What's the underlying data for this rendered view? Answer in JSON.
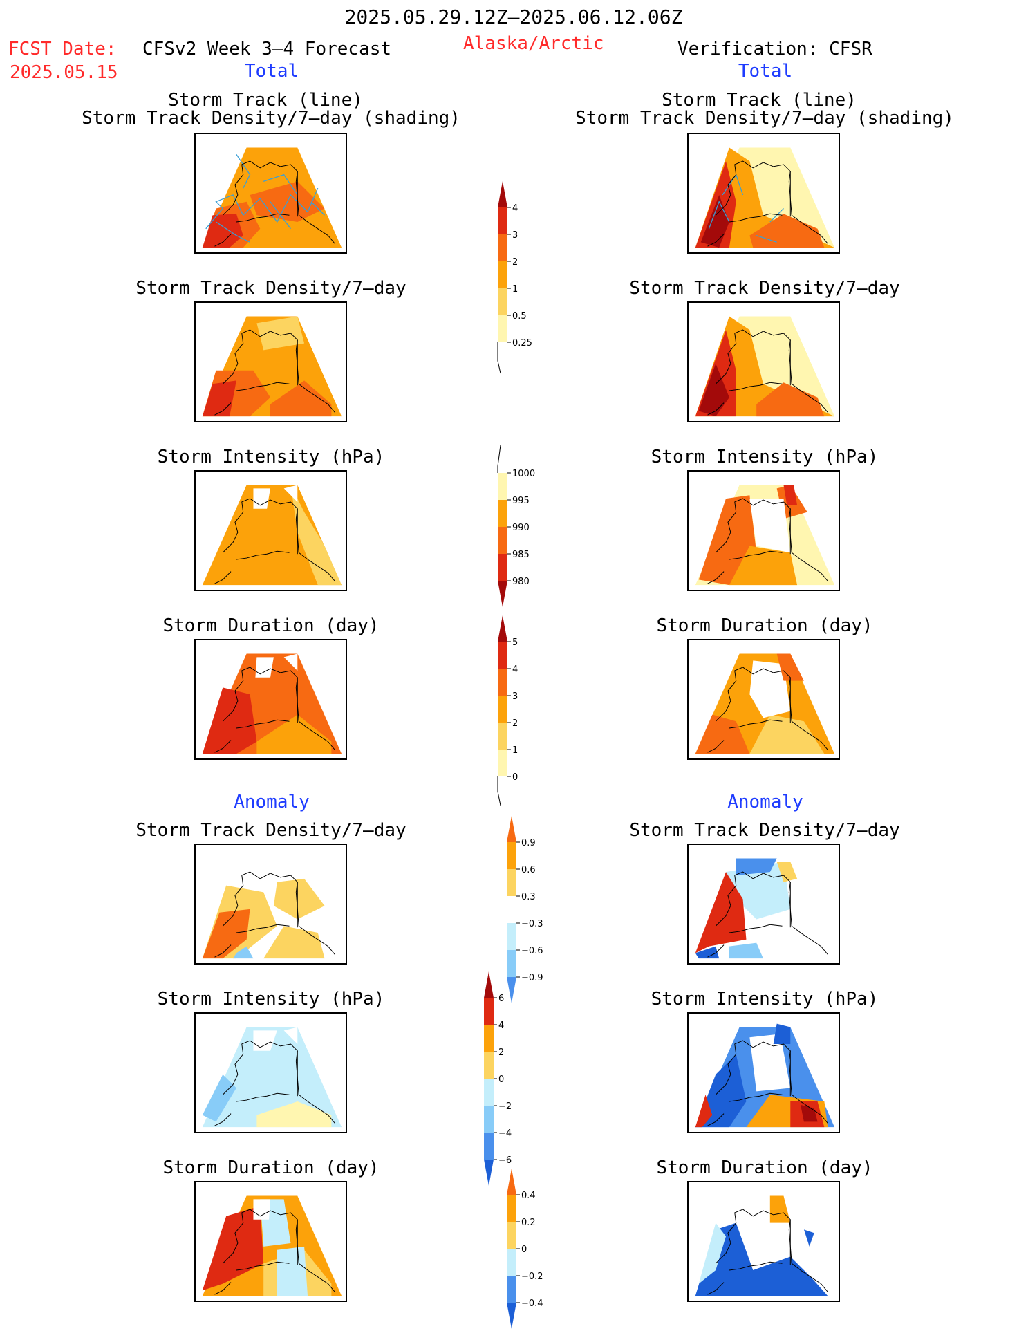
{
  "header": {
    "period": "2025.05.29.12Z–2025.06.12.06Z",
    "fcst_label": "FCST Date:",
    "fcst_date": "2025.05.15",
    "model": "CFSv2 Week 3–4 Forecast",
    "region": "Alaska/Arctic",
    "verification": "Verification: CFSR",
    "left_section": "Total",
    "right_section": "Total"
  },
  "panels": {
    "track_line": "Storm Track (line)",
    "track_shading": "Storm Track Density/7–day (shading)",
    "density": "Storm Track Density/7–day",
    "intensity": "Storm Intensity (hPa)",
    "duration": "Storm Duration (day)",
    "anomaly": "Anomaly"
  },
  "colorbars": {
    "density": [
      "4",
      "3",
      "2",
      "1",
      "0.5",
      "0.25"
    ],
    "intensity": [
      "1000",
      "995",
      "990",
      "985",
      "980"
    ],
    "duration": [
      "5",
      "4",
      "3",
      "2",
      "1",
      "0"
    ],
    "anom_density": [
      "0.9",
      "0.6",
      "0.3",
      "−0.3",
      "−0.6",
      "−0.9"
    ],
    "anom_intensity": [
      "6",
      "4",
      "2",
      "0",
      "−2",
      "−4",
      "−6"
    ],
    "anom_duration": [
      "0.4",
      "0.2",
      "0",
      "−0.2",
      "−0.4"
    ]
  },
  "colors": {
    "c1": "#fff6b0",
    "c2": "#fcd460",
    "c3": "#fca20a",
    "c4": "#f76a12",
    "c5": "#df2a12",
    "c6": "#a30a0a",
    "b1": "#c4eefb",
    "b2": "#88ccf8",
    "b3": "#4a90ec",
    "b4": "#1c5fd6",
    "track": "#3a9fd6"
  }
}
